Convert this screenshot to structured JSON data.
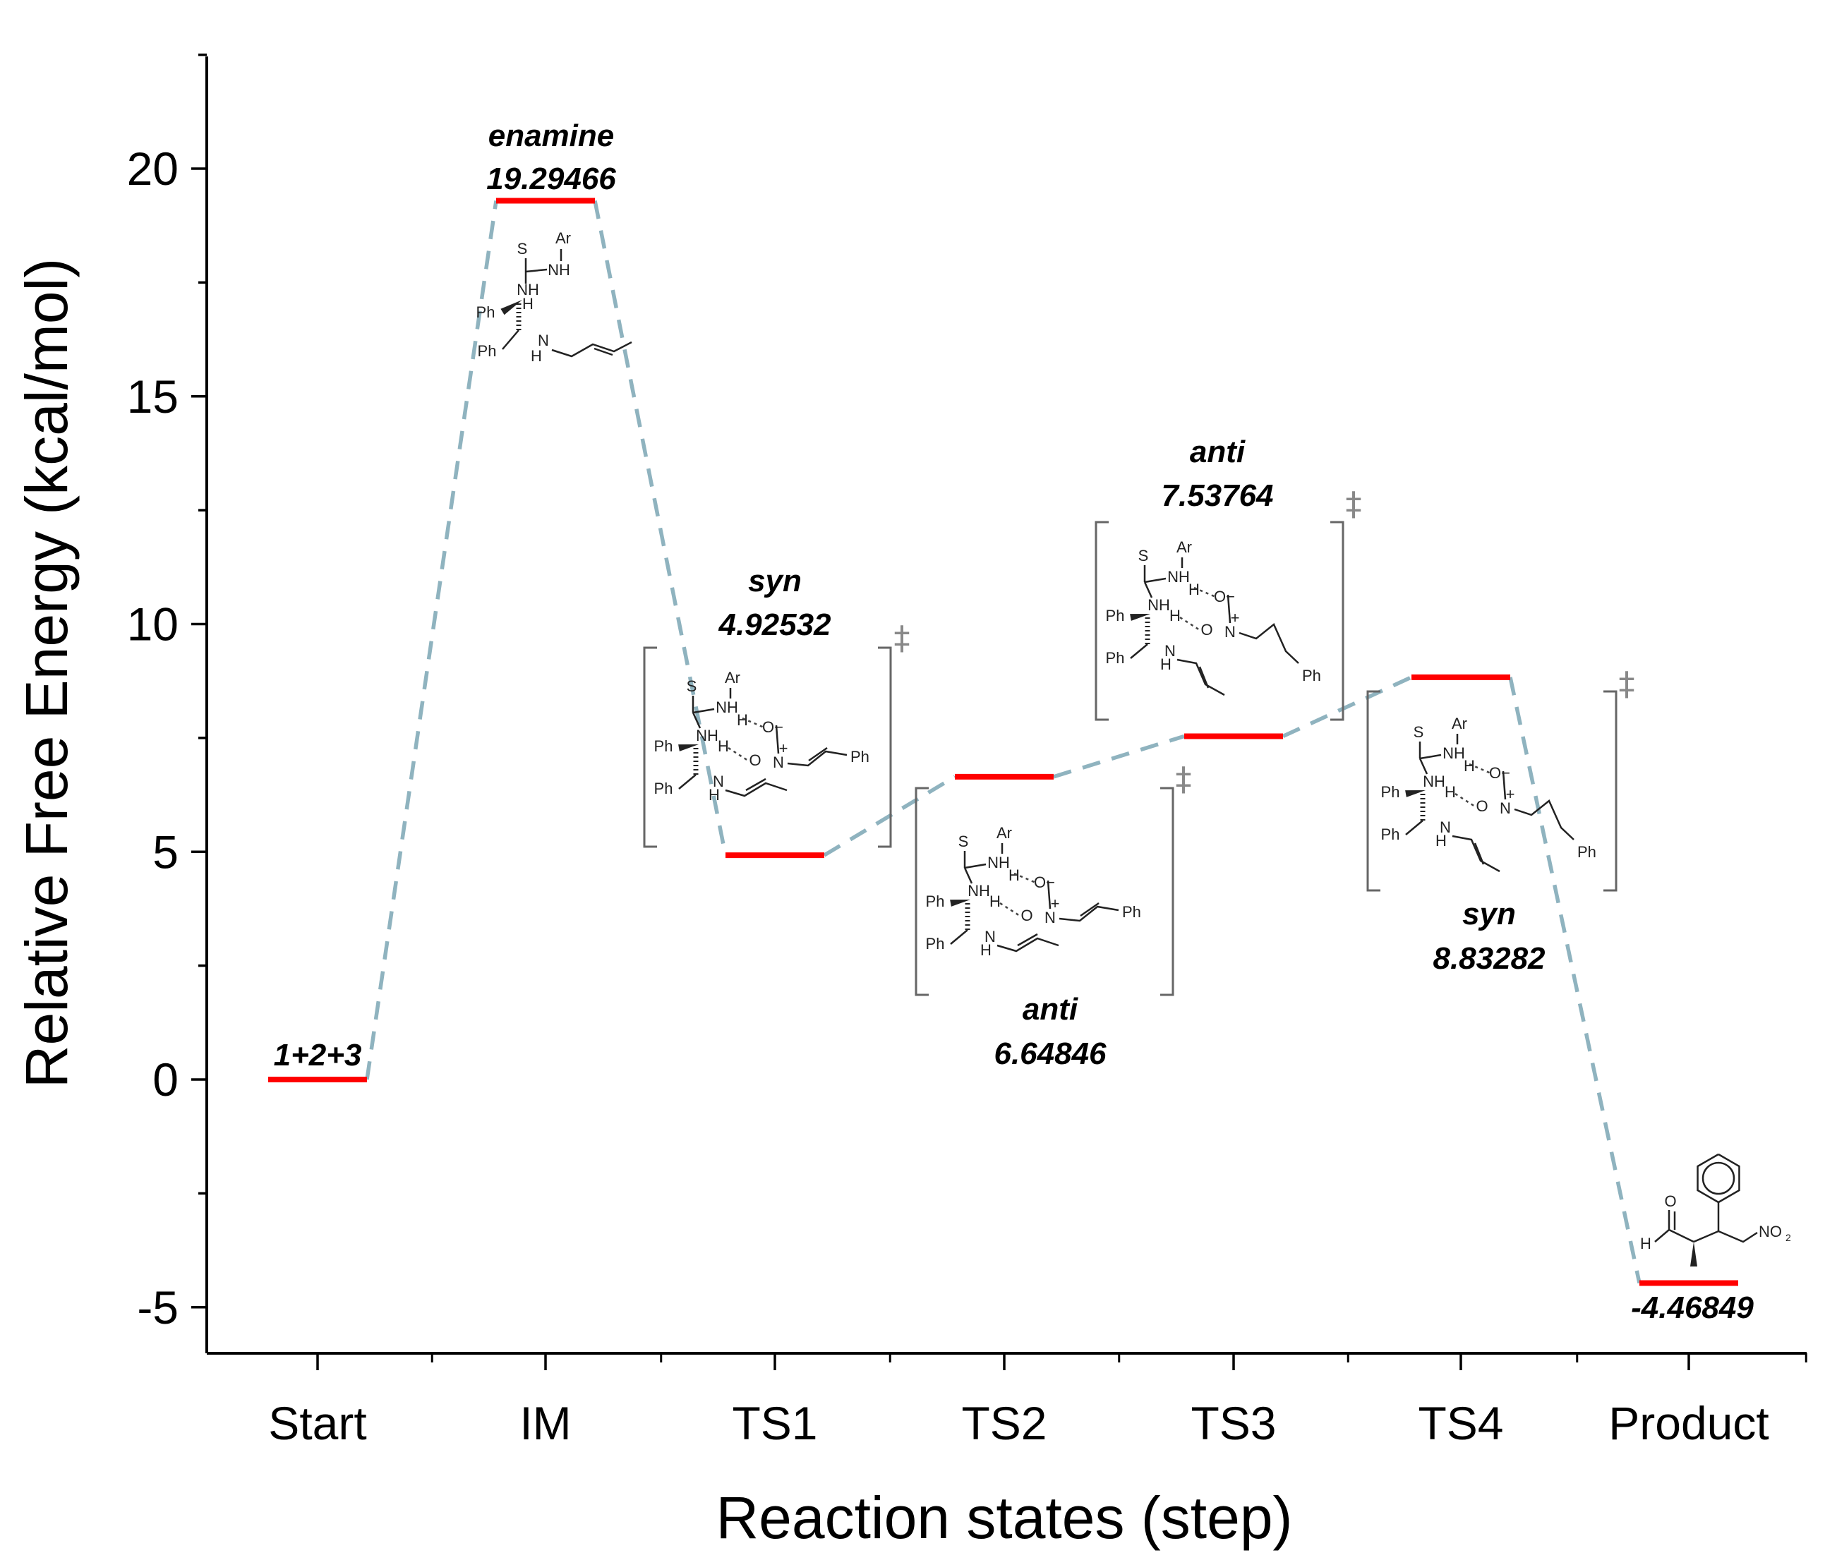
{
  "chart_data": {
    "type": "line",
    "variant": "energy-level-diagram",
    "xlabel": "Reaction states (step)",
    "ylabel": "Relative Free Energy (kcal/mol)",
    "categories": [
      "Start",
      "IM",
      "TS1",
      "TS2",
      "TS3",
      "TS4",
      "Product"
    ],
    "ylim": [
      -6,
      22.5
    ],
    "yticks": [
      -5,
      0,
      5,
      10,
      15,
      20
    ],
    "grid": false,
    "level_color": "#ff0000",
    "connector_color": "#8fb3bf",
    "levels": [
      {
        "state": "Start",
        "value": 0,
        "label": "1+2+3",
        "value_label": ""
      },
      {
        "state": "IM",
        "value": 19.29466,
        "label": "enamine",
        "value_label": "19.29466"
      },
      {
        "state": "TS1",
        "value": 4.92532,
        "label": "syn",
        "value_label": "4.92532"
      },
      {
        "state": "TS2",
        "value": 6.64846,
        "label": "anti",
        "value_label": "6.64846"
      },
      {
        "state": "TS3",
        "value": 7.53764,
        "label": "anti",
        "value_label": "7.53764"
      },
      {
        "state": "TS4",
        "value": 8.83282,
        "label": "syn",
        "value_label": "8.83282"
      },
      {
        "state": "Product",
        "value": -4.46849,
        "label": "",
        "value_label": "-4.46849"
      }
    ],
    "structure_text": {
      "ar": "Ar",
      "s": "S",
      "nh": "NH",
      "n": "N",
      "h": "H",
      "ph": "Ph",
      "o": "O",
      "o_minus": "O",
      "minus": "−",
      "plus": "+",
      "no2": "NO",
      "no2_sub": "2",
      "ts_mark": "‡"
    }
  }
}
